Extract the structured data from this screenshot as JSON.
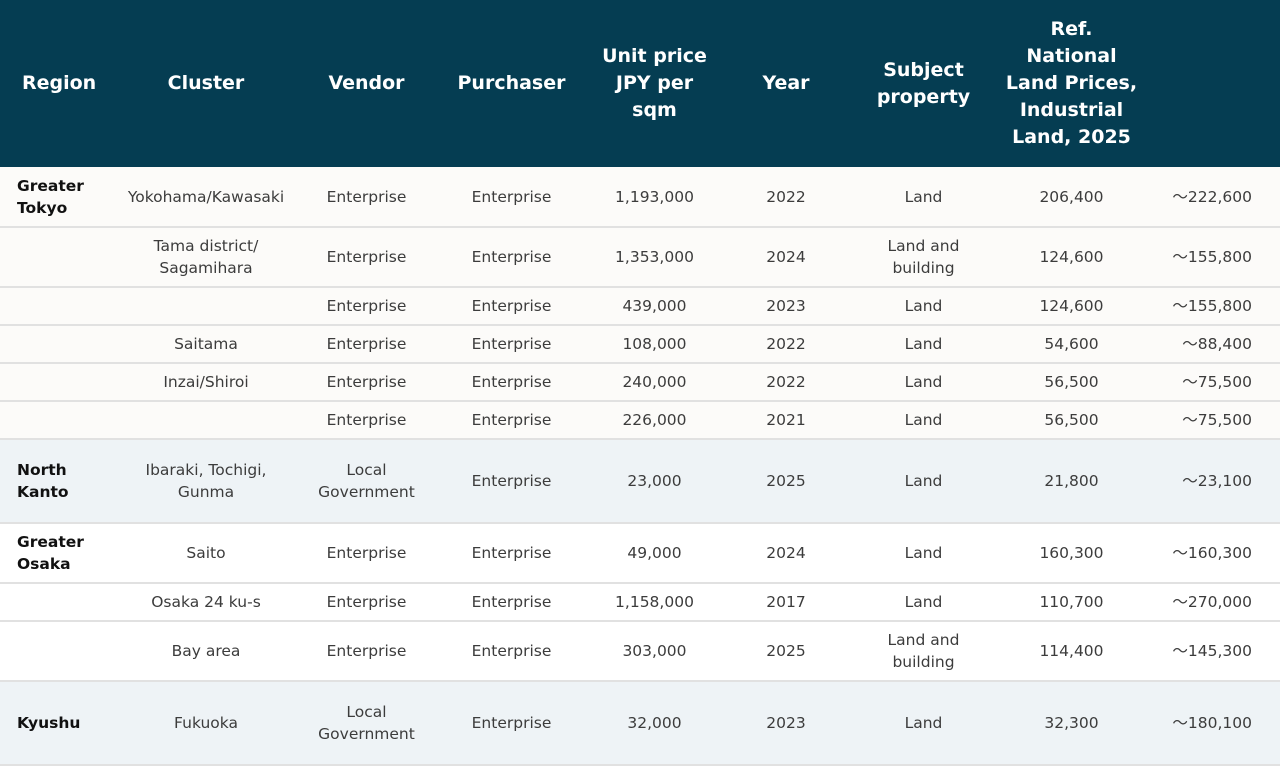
{
  "headers": {
    "region": "Region",
    "cluster": "Cluster",
    "vendor": "Vendor",
    "purchaser": "Purchaser",
    "unit_price": "Unit price\nJPY per\nsqm",
    "year": "Year",
    "subject_property": "Subject\nproperty",
    "ref_land_prices": "Ref.\nNational\nLand Prices,\nIndustrial\nLand, 2025"
  },
  "rows": [
    {
      "region": "Greater\nTokyo",
      "cluster": "Yokohama/Kawasaki",
      "vendor": "Enterprise",
      "purchaser": "Enterprise",
      "unit_price": "1,193,000",
      "year": "2022",
      "subject": "Land",
      "ref_low": "206,400",
      "ref_high": "～222,600"
    },
    {
      "region": "",
      "cluster": "Tama district/\nSagamihara",
      "vendor": "Enterprise",
      "purchaser": "Enterprise",
      "unit_price": "1,353,000",
      "year": "2024",
      "subject": "Land and\nbuilding",
      "ref_low": "124,600",
      "ref_high": "～155,800"
    },
    {
      "region": "",
      "cluster": "",
      "vendor": "Enterprise",
      "purchaser": "Enterprise",
      "unit_price": "439,000",
      "year": "2023",
      "subject": "Land",
      "ref_low": "124,600",
      "ref_high": "～155,800"
    },
    {
      "region": "",
      "cluster": "Saitama",
      "vendor": "Enterprise",
      "purchaser": "Enterprise",
      "unit_price": "108,000",
      "year": "2022",
      "subject": "Land",
      "ref_low": "54,600",
      "ref_high": "～88,400"
    },
    {
      "region": "",
      "cluster": "Inzai/Shiroi",
      "vendor": "Enterprise",
      "purchaser": "Enterprise",
      "unit_price": "240,000",
      "year": "2022",
      "subject": "Land",
      "ref_low": "56,500",
      "ref_high": "～75,500"
    },
    {
      "region": "",
      "cluster": "",
      "vendor": "Enterprise",
      "purchaser": "Enterprise",
      "unit_price": "226,000",
      "year": "2021",
      "subject": "Land",
      "ref_low": "56,500",
      "ref_high": "～75,500"
    },
    {
      "region": "North\nKanto",
      "cluster": "Ibaraki, Tochigi,\nGunma",
      "vendor": "Local\nGovernment",
      "purchaser": "Enterprise",
      "unit_price": "23,000",
      "year": "2025",
      "subject": "Land",
      "ref_low": "21,800",
      "ref_high": "～23,100"
    },
    {
      "region": "Greater\nOsaka",
      "cluster": "Saito",
      "vendor": "Enterprise",
      "purchaser": "Enterprise",
      "unit_price": "49,000",
      "year": "2024",
      "subject": "Land",
      "ref_low": "160,300",
      "ref_high": "～160,300"
    },
    {
      "region": "",
      "cluster": "Osaka 24 ku-s",
      "vendor": "Enterprise",
      "purchaser": "Enterprise",
      "unit_price": "1,158,000",
      "year": "2017",
      "subject": "Land",
      "ref_low": "110,700",
      "ref_high": "～270,000"
    },
    {
      "region": "",
      "cluster": "Bay area",
      "vendor": "Enterprise",
      "purchaser": "Enterprise",
      "unit_price": "303,000",
      "year": "2025",
      "subject": "Land and\nbuilding",
      "ref_low": "114,400",
      "ref_high": "～145,300"
    },
    {
      "region": "Kyushu",
      "cluster": "Fukuoka",
      "vendor": "Local\nGovernment",
      "purchaser": "Enterprise",
      "unit_price": "32,000",
      "year": "2023",
      "subject": "Land",
      "ref_low": "32,300",
      "ref_high": "～180,100"
    }
  ]
}
